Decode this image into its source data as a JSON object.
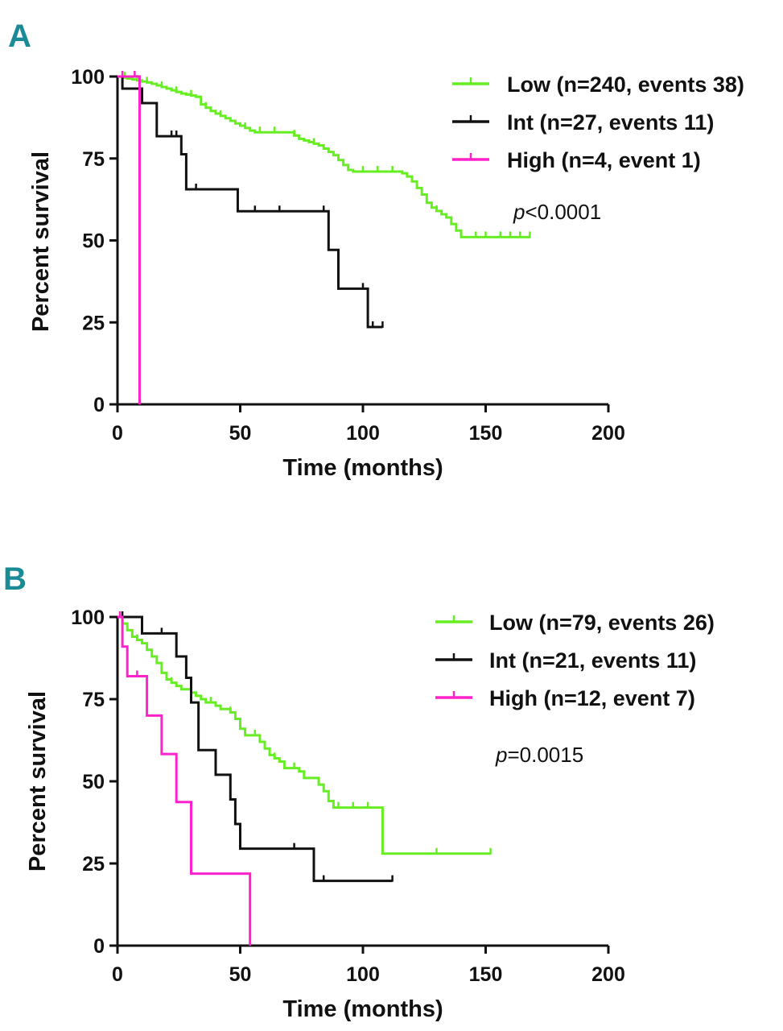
{
  "chart_data": [
    {
      "panel": "A",
      "type": "line",
      "subtype": "kaplan-meier",
      "xlabel": "Time (months)",
      "ylabel": "Percent survival",
      "xlim": [
        0,
        200
      ],
      "ylim": [
        0,
        100
      ],
      "xticks": [
        "0",
        "50",
        "100",
        "150",
        "200"
      ],
      "yticks": [
        "0",
        "25",
        "50",
        "75",
        "100"
      ],
      "pvalue": {
        "symbol": "p",
        "text": "<0.0001"
      },
      "series": [
        {
          "name": "Low (n=240, events 38)",
          "color": "#66ee22",
          "x": [
            0,
            2,
            4,
            6,
            8,
            10,
            12,
            14,
            16,
            18,
            20,
            22,
            24,
            26,
            28,
            30,
            32,
            34,
            36,
            38,
            40,
            42,
            44,
            46,
            48,
            50,
            52,
            54,
            56,
            58,
            60,
            62,
            64,
            66,
            68,
            70,
            72,
            74,
            76,
            78,
            80,
            82,
            84,
            86,
            88,
            90,
            92,
            94,
            96,
            98,
            100,
            102,
            104,
            106,
            108,
            110,
            112,
            114,
            116,
            118,
            120,
            122,
            124,
            126,
            128,
            130,
            132,
            134,
            136,
            138,
            140,
            142,
            144,
            146,
            148,
            150,
            152,
            154,
            156,
            158,
            160,
            162,
            164,
            166,
            168
          ],
          "y": [
            100,
            99.7,
            99.4,
            99.1,
            98.8,
            98.5,
            98.2,
            97.8,
            97.3,
            96.8,
            96.3,
            95.8,
            95.3,
            94.8,
            94.5,
            94.2,
            93.8,
            91.5,
            90.5,
            89.5,
            88.7,
            88,
            87.3,
            86.5,
            85.7,
            85,
            84.3,
            83.5,
            83,
            83,
            83,
            83,
            83,
            83,
            83,
            83,
            82,
            81,
            80.5,
            80,
            79.5,
            79,
            78,
            77,
            76,
            74.5,
            73,
            71.5,
            71,
            71,
            71,
            71,
            71,
            71,
            71,
            71,
            71,
            71,
            70.5,
            69.5,
            68,
            66,
            64,
            61.5,
            60,
            59,
            58,
            57,
            55,
            53,
            51,
            51,
            51,
            51,
            51,
            51,
            51,
            51,
            51,
            51,
            51,
            51,
            51,
            51,
            51
          ],
          "censor_x": [
            3,
            8,
            12,
            18,
            24,
            30,
            36,
            42,
            52,
            58,
            64,
            72,
            80,
            94,
            100,
            106,
            112,
            120,
            126,
            130,
            140,
            146,
            150,
            156,
            160,
            164,
            168
          ]
        },
        {
          "name": "Int (n=27, events 11)",
          "color": "#111111",
          "x": [
            0,
            2,
            8,
            10,
            16,
            20,
            26,
            28,
            30,
            49,
            60,
            84,
            86,
            90,
            96,
            102,
            108
          ],
          "y": [
            100,
            96.3,
            96.3,
            91.9,
            81.8,
            81.8,
            76.3,
            65.6,
            65.6,
            58.9,
            58.9,
            58.9,
            47.1,
            35.3,
            35.3,
            23.6,
            23.6
          ],
          "censor_x": [
            22,
            24,
            32,
            56,
            66,
            84,
            100,
            104,
            108
          ]
        },
        {
          "name": "High (n=4, event 1)",
          "color": "#ff22cc",
          "x": [
            0,
            9
          ],
          "y": [
            100,
            0
          ],
          "censor_x": [
            2,
            7
          ]
        }
      ]
    },
    {
      "panel": "B",
      "type": "line",
      "subtype": "kaplan-meier",
      "xlabel": "Time (months)",
      "ylabel": "Percent survival",
      "xlim": [
        0,
        200
      ],
      "ylim": [
        0,
        100
      ],
      "xticks": [
        "0",
        "50",
        "100",
        "150",
        "200"
      ],
      "yticks": [
        "0",
        "25",
        "50",
        "75",
        "100"
      ],
      "pvalue": {
        "symbol": "p",
        "text": "=0.0015"
      },
      "series": [
        {
          "name": "Low (n=79, events 26)",
          "color": "#66ee22",
          "x": [
            0,
            2,
            4,
            6,
            8,
            10,
            12,
            14,
            16,
            18,
            20,
            22,
            24,
            26,
            28,
            30,
            32,
            34,
            36,
            38,
            40,
            42,
            44,
            46,
            48,
            50,
            52,
            54,
            56,
            58,
            60,
            62,
            64,
            66,
            68,
            70,
            72,
            74,
            76,
            78,
            80,
            82,
            84,
            86,
            88,
            90,
            92,
            94,
            96,
            98,
            100,
            102,
            104,
            106,
            108,
            152
          ],
          "y": [
            100,
            98,
            96,
            94,
            93,
            92,
            90,
            88,
            86,
            83,
            81,
            80,
            79,
            78,
            78,
            77,
            76,
            75,
            74,
            74,
            73,
            72,
            72,
            71,
            69,
            66,
            64,
            64,
            64,
            62,
            60,
            58,
            57,
            56,
            54,
            54,
            54,
            53,
            51,
            51,
            51,
            49,
            47,
            44,
            42,
            42,
            42,
            42,
            42,
            42,
            42,
            42,
            42,
            42,
            28,
            28
          ],
          "censor_x": [
            8,
            14,
            22,
            30,
            38,
            46,
            56,
            64,
            72,
            82,
            90,
            96,
            102,
            130,
            152
          ]
        },
        {
          "name": "Int (n=21, events 11)",
          "color": "#111111",
          "x": [
            0,
            8,
            10,
            24,
            26,
            28,
            30,
            33,
            38,
            40,
            44,
            46,
            48,
            50,
            70,
            78,
            80,
            112
          ],
          "y": [
            100,
            100,
            95,
            88,
            88,
            81.5,
            74,
            59.5,
            59.5,
            52,
            52,
            44.5,
            37,
            29.5,
            29.5,
            29.5,
            19.7,
            19.7
          ],
          "censor_x": [
            2,
            18,
            72,
            84,
            112
          ]
        },
        {
          "name": "High (n=12, event 7)",
          "color": "#ff22cc",
          "x": [
            0,
            2,
            4,
            10,
            12,
            16,
            18,
            24,
            26,
            30,
            34,
            40,
            54
          ],
          "y": [
            100,
            91,
            82,
            82,
            70,
            70,
            58.3,
            43.7,
            43.7,
            21.9,
            21.9,
            21.9,
            0
          ],
          "censor_x": [
            1,
            8
          ]
        }
      ]
    }
  ]
}
